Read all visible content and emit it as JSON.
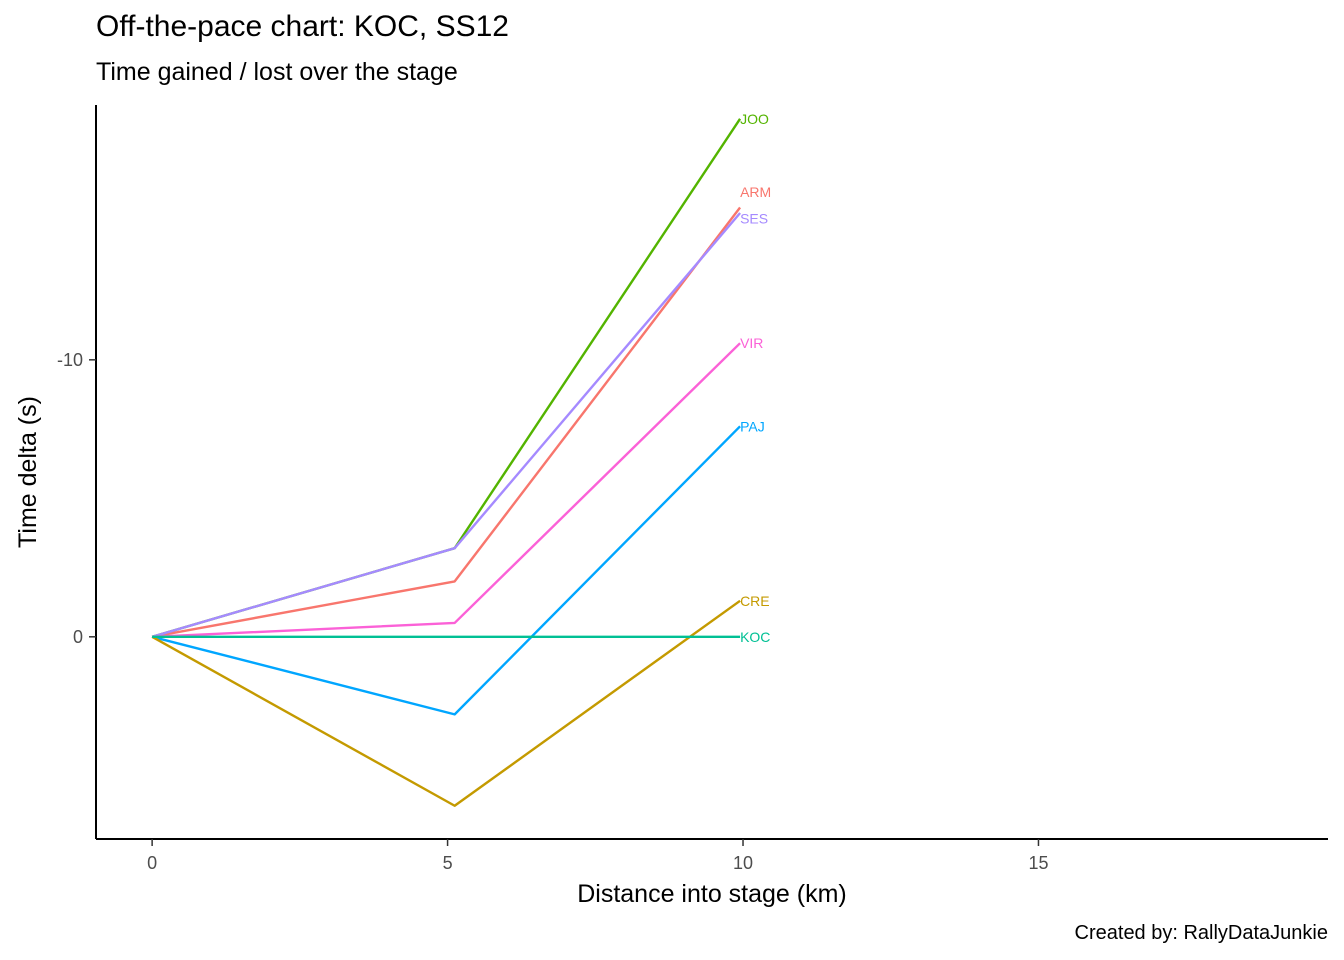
{
  "chart_data": {
    "type": "line",
    "title": "Off-the-pace chart: KOC, SS12",
    "subtitle": "Time gained / lost over the stage",
    "caption": "Created by: RallyDataJunkie",
    "xlabel": "Distance into stage (km)",
    "ylabel": "Time delta (s)",
    "xlim": [
      -0.95,
      19.9
    ],
    "ylim": [
      7.3,
      -19.2
    ],
    "y_reversed": true,
    "x_ticks": [
      0,
      5,
      10,
      15
    ],
    "y_ticks": [
      0,
      -10
    ],
    "y_tick_labels": [
      "0",
      "-10"
    ],
    "grid": false,
    "legend": "none",
    "x": [
      0,
      5.12,
      9.95
    ],
    "series": [
      {
        "name": "JOO",
        "values": [
          0,
          -3.2,
          -18.7
        ],
        "color": "#53B400"
      },
      {
        "name": "ARM",
        "values": [
          0,
          -2.0,
          -15.5
        ],
        "color": "#F8766D"
      },
      {
        "name": "SES",
        "values": [
          0,
          -3.2,
          -15.3
        ],
        "color": "#A58AFF"
      },
      {
        "name": "VIR",
        "values": [
          0,
          -0.5,
          -10.6
        ],
        "color": "#FB61D7"
      },
      {
        "name": "PAJ",
        "values": [
          0,
          2.8,
          -7.6
        ],
        "color": "#00A6FF"
      },
      {
        "name": "CRE",
        "values": [
          0,
          6.1,
          -1.3
        ],
        "color": "#C49A00"
      },
      {
        "name": "KOC",
        "values": [
          0,
          0,
          0
        ],
        "color": "#00C094"
      }
    ],
    "label_offsets_s": {
      "ARM": -0.55,
      "SES": 0.2
    }
  }
}
